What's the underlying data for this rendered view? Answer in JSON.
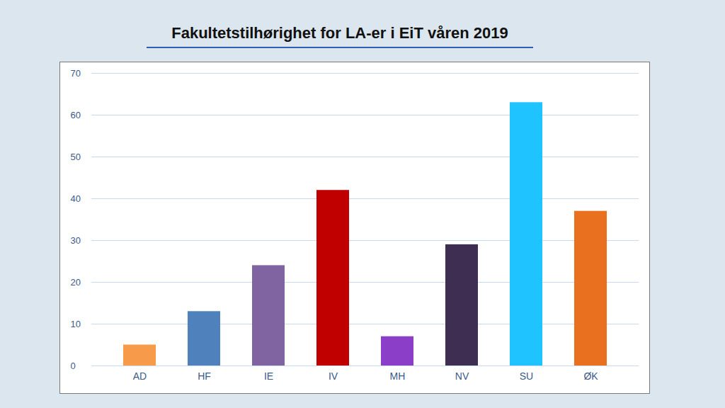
{
  "chart_data": {
    "type": "bar",
    "title": "Fakultetstilhørighet for LA-er i EiT våren 2019",
    "categories": [
      "AD",
      "HF",
      "IE",
      "IV",
      "MH",
      "NV",
      "SU",
      "ØK"
    ],
    "values": [
      5,
      13,
      24,
      42,
      7,
      29,
      63,
      37
    ],
    "colors": [
      "#f79a4a",
      "#4f81bd",
      "#8064a2",
      "#c00000",
      "#8b3fc8",
      "#3d2e52",
      "#1fc3ff",
      "#e8701e"
    ],
    "ylim": [
      0,
      70
    ],
    "yticks": [
      0,
      10,
      20,
      30,
      40,
      50,
      60,
      70
    ],
    "grid": true
  }
}
